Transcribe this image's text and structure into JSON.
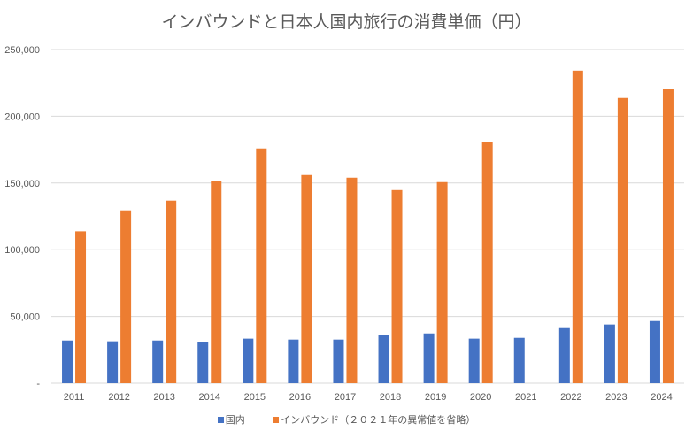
{
  "chart_data": {
    "type": "bar",
    "title": "インバウンドと日本人国内旅行の消費単価（円）",
    "xlabel": "",
    "ylabel": "",
    "categories": [
      "2011",
      "2012",
      "2013",
      "2014",
      "2015",
      "2016",
      "2017",
      "2018",
      "2019",
      "2020",
      "2021",
      "2022",
      "2023",
      "2024"
    ],
    "series": [
      {
        "name": "国内",
        "color": "#4472C4",
        "values": [
          32000,
          31400,
          32000,
          30700,
          33400,
          32700,
          32700,
          36000,
          37300,
          33400,
          34000,
          41300,
          44000,
          46600
        ]
      },
      {
        "name": "インバウンド（２０２１年の異常値を省略）",
        "color": "#ED7D31",
        "values": [
          113800,
          129500,
          136800,
          151400,
          175900,
          156000,
          154000,
          144700,
          150700,
          180500,
          null,
          234200,
          213700,
          220300
        ]
      }
    ],
    "ylim": [
      0,
      250000
    ],
    "yticks": [
      0,
      50000,
      100000,
      150000,
      200000,
      250000
    ],
    "ytick_labels": [
      "-",
      "50,000",
      "100,000",
      "150,000",
      "200,000",
      "250,000"
    ],
    "grid": true,
    "legend": "bottom"
  }
}
